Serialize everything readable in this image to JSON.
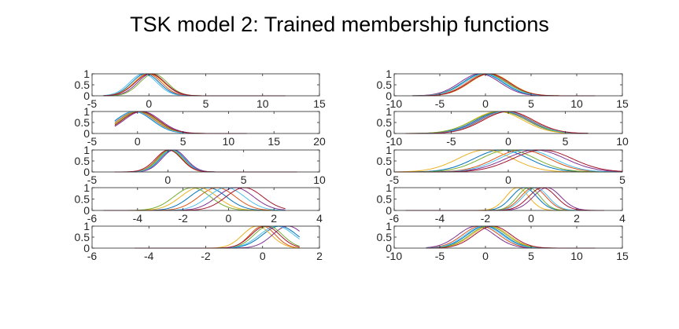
{
  "title": "TSK model 2: Trained membership functions",
  "colors": [
    "#0072bd",
    "#d95319",
    "#edb120",
    "#7e2f8e",
    "#77ac30",
    "#4dbeee",
    "#a2142f"
  ],
  "chart_data": [
    {
      "type": "line",
      "grid": false,
      "xlim": [
        -5,
        15
      ],
      "ylim": [
        0,
        1
      ],
      "xticks": [
        "-5",
        "0",
        "5",
        "10",
        "15"
      ],
      "yticks": [
        "0",
        "0.5",
        "1"
      ],
      "domain": [
        -4,
        12
      ],
      "curves": [
        [
          -0.3,
          1.2
        ],
        [
          -0.1,
          1.2
        ],
        [
          0,
          1.3
        ],
        [
          0.2,
          1.2
        ],
        [
          0.4,
          1.2
        ],
        [
          -0.5,
          1.2
        ],
        [
          0.1,
          1.3
        ]
      ]
    },
    {
      "type": "line",
      "grid": false,
      "xlim": [
        -5,
        20
      ],
      "ylim": [
        0,
        1
      ],
      "xticks": [
        "-5",
        "0",
        "5",
        "10",
        "15",
        "20"
      ],
      "yticks": [
        "0",
        "0.5",
        "1"
      ],
      "domain": [
        -2.5,
        12
      ],
      "curves": [
        [
          -0.4,
          2
        ],
        [
          -0.1,
          2
        ],
        [
          0.2,
          2
        ],
        [
          0.5,
          2
        ],
        [
          0.1,
          2
        ],
        [
          -0.3,
          2
        ],
        [
          0.3,
          2
        ]
      ]
    },
    {
      "type": "line",
      "grid": false,
      "xlim": [
        -5,
        10
      ],
      "ylim": [
        0,
        1
      ],
      "xticks": [
        "-5",
        "0",
        "5",
        "10"
      ],
      "yticks": [
        "0",
        "0.5",
        "1"
      ],
      "domain": [
        -3.5,
        8.5
      ],
      "curves": [
        [
          0.3,
          0.8
        ],
        [
          0.1,
          0.8
        ],
        [
          0.2,
          0.8
        ],
        [
          0.4,
          0.8
        ],
        [
          0.15,
          0.8
        ],
        [
          0.25,
          0.8
        ],
        [
          0.05,
          0.85
        ]
      ]
    },
    {
      "type": "line",
      "grid": false,
      "xlim": [
        -6,
        4
      ],
      "ylim": [
        0,
        1
      ],
      "xticks": [
        "-6",
        "-4",
        "-2",
        "0",
        "2",
        "4"
      ],
      "yticks": [
        "0",
        "0.5",
        "1"
      ],
      "domain": [
        -5.5,
        2.5
      ],
      "curves": [
        [
          -0.9,
          0.8
        ],
        [
          -0.5,
          0.8
        ],
        [
          -1.3,
          0.8
        ],
        [
          0.3,
          0.8
        ],
        [
          -1.6,
          0.8
        ],
        [
          -0.1,
          0.8
        ],
        [
          0.7,
          0.8
        ]
      ]
    },
    {
      "type": "line",
      "grid": false,
      "xlim": [
        -6,
        2
      ],
      "ylim": [
        0,
        1
      ],
      "xticks": [
        "-6",
        "-4",
        "-2",
        "0",
        "2"
      ],
      "yticks": [
        "0",
        "0.5",
        "1"
      ],
      "domain": [
        -4.5,
        1.3
      ],
      "curves": [
        [
          0.6,
          0.6
        ],
        [
          0,
          0.45
        ],
        [
          -0.2,
          0.5
        ],
        [
          0.9,
          0.55
        ],
        [
          0.2,
          0.5
        ],
        [
          0.5,
          0.6
        ],
        [
          0.1,
          0.5
        ]
      ]
    },
    {
      "type": "line",
      "grid": false,
      "xlim": [
        -10,
        15
      ],
      "ylim": [
        0,
        1
      ],
      "xticks": [
        "-10",
        "-5",
        "0",
        "5",
        "10",
        "15"
      ],
      "yticks": [
        "0",
        "0.5",
        "1"
      ],
      "domain": [
        -8,
        12
      ],
      "curves": [
        [
          -0.3,
          2.2
        ],
        [
          0.2,
          2.2
        ],
        [
          0.5,
          2.2
        ],
        [
          -0.6,
          2.2
        ],
        [
          0,
          2.3
        ],
        [
          -0.1,
          2.2
        ],
        [
          0.4,
          2.2
        ]
      ]
    },
    {
      "type": "line",
      "grid": false,
      "xlim": [
        -10,
        10
      ],
      "ylim": [
        0,
        1
      ],
      "xticks": [
        "-10",
        "-5",
        "0",
        "5",
        "10"
      ],
      "yticks": [
        "0",
        "0.5",
        "1"
      ],
      "domain": [
        -9,
        7
      ],
      "curves": [
        [
          -0.6,
          2.2
        ],
        [
          -0.2,
          2.2
        ],
        [
          -0.9,
          2.2
        ],
        [
          -0.4,
          2.2
        ],
        [
          -0.7,
          2.3
        ],
        [
          -0.3,
          2.2
        ],
        [
          0,
          2.2
        ]
      ]
    },
    {
      "type": "line",
      "grid": false,
      "xlim": [
        -5,
        5
      ],
      "ylim": [
        0,
        1
      ],
      "xticks": [
        "-5",
        "0",
        "5"
      ],
      "yticks": [
        "0",
        "0.5",
        "1"
      ],
      "domain": [
        -5,
        5
      ],
      "curves": [
        [
          -0.3,
          1.2
        ],
        [
          0.6,
          1.2
        ],
        [
          -1.0,
          1.2
        ],
        [
          1.2,
          1.3
        ],
        [
          0,
          1.2
        ],
        [
          0.8,
          1.2
        ],
        [
          1.5,
          1.3
        ]
      ]
    },
    {
      "type": "line",
      "grid": false,
      "xlim": [
        -6,
        4
      ],
      "ylim": [
        0,
        1
      ],
      "xticks": [
        "-6",
        "-4",
        "-2",
        "0",
        "2",
        "4"
      ],
      "yticks": [
        "0",
        "0.5",
        "1"
      ],
      "domain": [
        -5.5,
        3.2
      ],
      "curves": [
        [
          -0.3,
          0.55
        ],
        [
          0.1,
          0.55
        ],
        [
          -0.6,
          0.5
        ],
        [
          0.7,
          0.6
        ],
        [
          -0.1,
          0.5
        ],
        [
          0.2,
          0.55
        ],
        [
          0.5,
          0.6
        ]
      ]
    },
    {
      "type": "line",
      "grid": false,
      "xlim": [
        -10,
        15
      ],
      "ylim": [
        0,
        1
      ],
      "xticks": [
        "-10",
        "-5",
        "0",
        "5",
        "10",
        "15"
      ],
      "yticks": [
        "0",
        "0.5",
        "1"
      ],
      "domain": [
        -6.5,
        12
      ],
      "curves": [
        [
          0,
          2
        ],
        [
          -0.5,
          2
        ],
        [
          0.5,
          2
        ],
        [
          -1,
          2
        ],
        [
          0.3,
          2
        ],
        [
          -0.2,
          2
        ],
        [
          0.8,
          2
        ]
      ]
    }
  ]
}
